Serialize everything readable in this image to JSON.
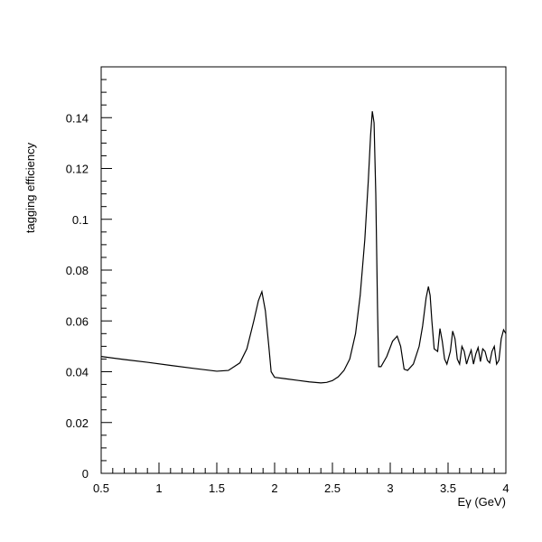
{
  "chart_data": {
    "type": "line",
    "title": "",
    "xlabel": "Eγ (GeV)",
    "ylabel": "tagging efficiency",
    "xlim": [
      0.5,
      4.0
    ],
    "ylim": [
      0,
      0.16
    ],
    "x_ticks": [
      0.5,
      1,
      1.5,
      2,
      2.5,
      3,
      3.5,
      4
    ],
    "x_tick_labels": [
      "0.5",
      "1",
      "1.5",
      "2",
      "2.5",
      "3",
      "3.5",
      "4"
    ],
    "y_ticks": [
      0,
      0.02,
      0.04,
      0.06,
      0.08,
      0.1,
      0.12,
      0.14
    ],
    "y_tick_labels": [
      "0",
      "0.02",
      "0.04",
      "0.06",
      "0.08",
      "0.1",
      "0.12",
      "0.14"
    ],
    "grid": false,
    "legend": "none",
    "line_color": "#000000",
    "series": [
      {
        "x": [
          0.5,
          0.7,
          0.9,
          1.1,
          1.3,
          1.5,
          1.6,
          1.7,
          1.76,
          1.82,
          1.86,
          1.89,
          1.92,
          1.95,
          1.97,
          2.0,
          2.1,
          2.2,
          2.3,
          2.4,
          2.45,
          2.5,
          2.55,
          2.6,
          2.65,
          2.7,
          2.74,
          2.78,
          2.81,
          2.83,
          2.845,
          2.86,
          2.875,
          2.89,
          2.9,
          2.92,
          2.97,
          3.02,
          3.06,
          3.09,
          3.12,
          3.15,
          3.2,
          3.25,
          3.28,
          3.31,
          3.33,
          3.345,
          3.36,
          3.38,
          3.41,
          3.43,
          3.45,
          3.47,
          3.49,
          3.52,
          3.54,
          3.56,
          3.58,
          3.6,
          3.62,
          3.64,
          3.66,
          3.68,
          3.7,
          3.72,
          3.74,
          3.76,
          3.78,
          3.8,
          3.82,
          3.84,
          3.86,
          3.88,
          3.9,
          3.92,
          3.94,
          3.96,
          3.98,
          4.0
        ],
        "y": [
          0.046,
          0.0448,
          0.0437,
          0.0425,
          0.0413,
          0.0402,
          0.0405,
          0.0435,
          0.049,
          0.06,
          0.068,
          0.0715,
          0.064,
          0.05,
          0.04,
          0.0378,
          0.0372,
          0.0366,
          0.036,
          0.0356,
          0.0358,
          0.0365,
          0.038,
          0.0405,
          0.045,
          0.055,
          0.07,
          0.092,
          0.115,
          0.133,
          0.1425,
          0.138,
          0.11,
          0.065,
          0.042,
          0.042,
          0.046,
          0.052,
          0.054,
          0.05,
          0.041,
          0.0405,
          0.043,
          0.05,
          0.058,
          0.069,
          0.0735,
          0.07,
          0.06,
          0.049,
          0.048,
          0.057,
          0.052,
          0.045,
          0.043,
          0.048,
          0.056,
          0.053,
          0.045,
          0.043,
          0.05,
          0.048,
          0.043,
          0.046,
          0.0485,
          0.043,
          0.047,
          0.0495,
          0.044,
          0.049,
          0.048,
          0.0445,
          0.0435,
          0.048,
          0.05,
          0.043,
          0.0445,
          0.053,
          0.0565,
          0.055
        ]
      }
    ]
  }
}
